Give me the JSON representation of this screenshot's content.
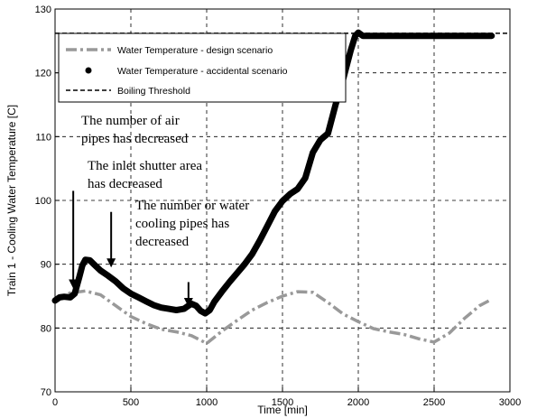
{
  "chart_data": {
    "type": "line",
    "xlabel": "Time [min]",
    "ylabel": "Train 1 - Cooling Water Temperature [C]",
    "xlim": [
      0,
      3000
    ],
    "ylim": [
      70,
      130
    ],
    "grid": true,
    "grid_style": "dashed",
    "legend_position": "top-left",
    "x_ticks": [
      "0",
      "500",
      "1000",
      "1500",
      "2000",
      "2500",
      "3000"
    ],
    "y_ticks": [
      "70",
      "80",
      "90",
      "100",
      "110",
      "120",
      "130"
    ],
    "series": [
      {
        "name": "Water Temperature - design scenario",
        "style": "dash-dot",
        "color": "#999999",
        "x": [
          0,
          100,
          200,
          300,
          400,
          500,
          600,
          700,
          800,
          900,
          1000,
          1100,
          1200,
          1300,
          1400,
          1500,
          1600,
          1700,
          1800,
          1900,
          2000,
          2100,
          2200,
          2300,
          2400,
          2500,
          2600,
          2700,
          2800,
          2880
        ],
        "y": [
          84.5,
          85.5,
          85.8,
          85.2,
          83.5,
          81.8,
          80.7,
          79.8,
          79.4,
          78.8,
          77.6,
          79.5,
          81.2,
          82.8,
          84.0,
          85.0,
          85.7,
          85.6,
          84.0,
          82.2,
          81.0,
          79.9,
          79.4,
          79.0,
          78.3,
          77.8,
          79.2,
          81.5,
          83.5,
          84.5
        ]
      },
      {
        "name": "Water Temperature - accidental scenario",
        "style": "marker-line",
        "color": "#000000",
        "x": [
          0,
          30,
          60,
          100,
          130,
          160,
          180,
          200,
          230,
          260,
          300,
          350,
          400,
          450,
          500,
          550,
          600,
          650,
          700,
          750,
          800,
          850,
          880,
          900,
          930,
          960,
          990,
          1020,
          1050,
          1100,
          1150,
          1200,
          1250,
          1300,
          1350,
          1400,
          1450,
          1500,
          1550,
          1600,
          1650,
          1700,
          1750,
          1800,
          1850,
          1900,
          1950,
          1980,
          2000,
          2030,
          2050,
          2100,
          2200,
          2300,
          2400,
          2500,
          2600,
          2700,
          2800,
          2880
        ],
        "y": [
          84.3,
          84.8,
          84.9,
          84.8,
          85.4,
          88.0,
          89.8,
          90.7,
          90.6,
          89.9,
          89.0,
          88.2,
          87.3,
          86.2,
          85.4,
          84.8,
          84.2,
          83.6,
          83.2,
          83.0,
          82.8,
          83.0,
          83.5,
          83.8,
          83.5,
          82.7,
          82.3,
          82.8,
          84.1,
          85.7,
          87.2,
          88.6,
          90.0,
          91.6,
          93.7,
          96.0,
          98.3,
          99.9,
          101.0,
          101.8,
          103.5,
          107.5,
          109.5,
          110.5,
          115.0,
          119.0,
          123.5,
          125.8,
          126.3,
          125.8,
          125.8,
          125.8,
          125.8,
          125.8,
          125.8,
          125.8,
          125.8,
          125.8,
          125.8,
          125.8
        ]
      },
      {
        "name": "Boiling Threshold",
        "style": "dashed",
        "color": "#000000",
        "x": [
          0,
          3000
        ],
        "y": [
          126.2,
          126.2
        ]
      }
    ],
    "annotations": [
      {
        "lines": [
          "The number  of air",
          "pipes has decreased"
        ],
        "arrow_x": 120,
        "arrow_from_y": 101.5,
        "arrow_to_y": 86.2
      },
      {
        "lines": [
          "The inlet shutter area",
          "has decreased"
        ],
        "arrow_x": 370,
        "arrow_from_y": 98.2,
        "arrow_to_y": 89.5
      },
      {
        "lines": [
          "The number  or water",
          "cooling pipes has",
          "decreased"
        ],
        "arrow_x": 880,
        "arrow_from_y": 87.2,
        "arrow_to_y": 83.3
      }
    ]
  }
}
